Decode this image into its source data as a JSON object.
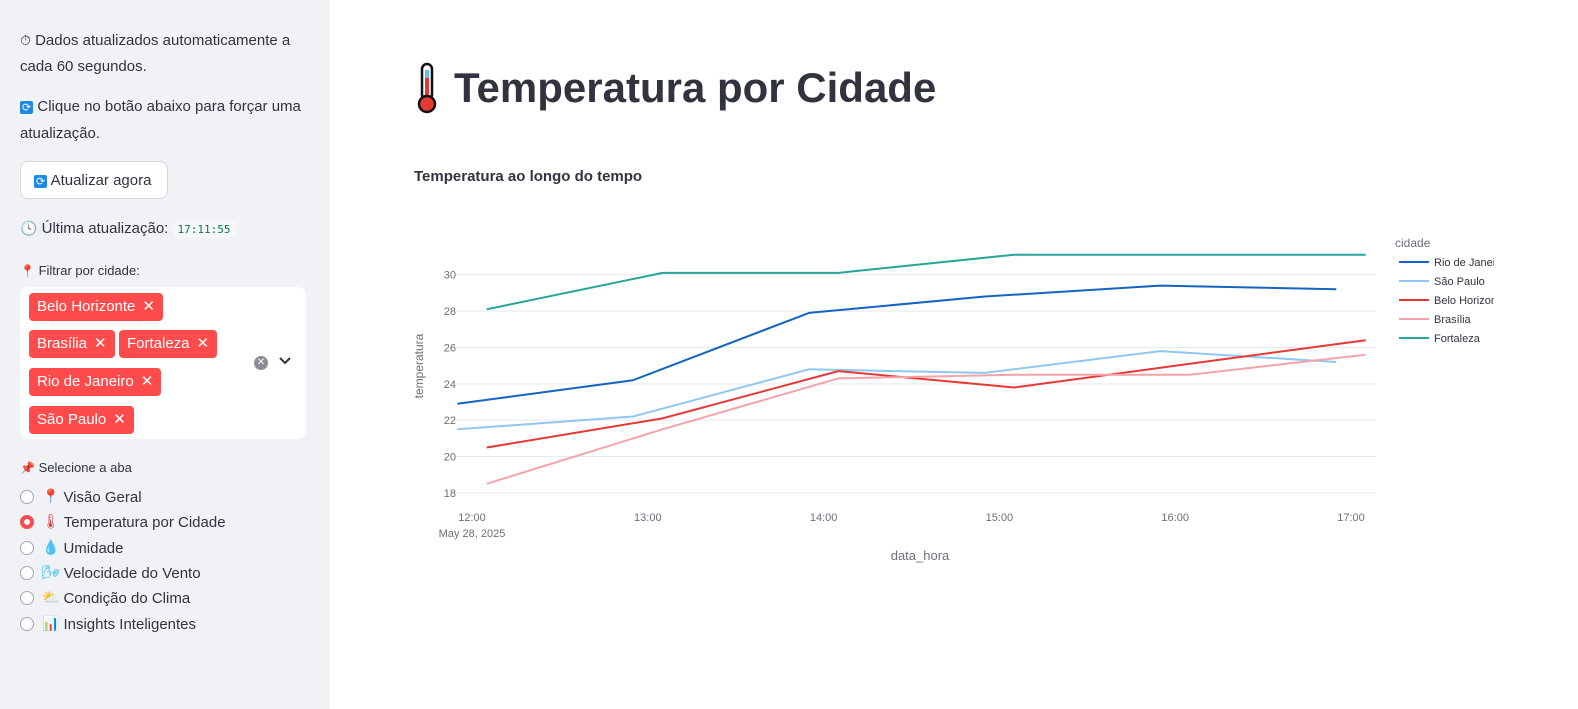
{
  "sidebar": {
    "info1": "Dados atualizados automaticamente a cada 60 segundos.",
    "info1_icon": "stopwatch-icon",
    "info2": "Clique no botão abaixo para forçar uma atualização.",
    "info2_icon": "refresh-icon",
    "refresh_button": "Atualizar agora",
    "last_update_label": "Última atualização:",
    "last_update_time": "17:11:55",
    "filter_label": "Filtrar por cidade:",
    "selected_cities": [
      "Belo Horizonte",
      "Brasília",
      "Fortaleza",
      "Rio de Janeiro",
      "São Paulo"
    ],
    "tab_label": "Selecione a aba",
    "tabs": [
      {
        "label": "Visão Geral",
        "icon": "pin-icon",
        "selected": false
      },
      {
        "label": "Temperatura por Cidade",
        "icon": "thermometer-icon",
        "selected": true
      },
      {
        "label": "Umidade",
        "icon": "droplet-icon",
        "selected": false
      },
      {
        "label": "Velocidade do Vento",
        "icon": "wind-icon",
        "selected": false
      },
      {
        "label": "Condição do Clima",
        "icon": "cloud-sun-icon",
        "selected": false
      },
      {
        "label": "Insights Inteligentes",
        "icon": "bar-chart-icon",
        "selected": false
      }
    ]
  },
  "main": {
    "title": "Temperatura por Cidade",
    "subtitle": "Temperatura ao longo do tempo"
  },
  "chart_data": {
    "type": "line",
    "title": "",
    "xlabel": "data_hora",
    "ylabel": "temperatura",
    "x_ticks": [
      "12:00",
      "13:00",
      "14:00",
      "15:00",
      "16:00",
      "17:00"
    ],
    "x_tick_sub": "May 28, 2025",
    "y_ticks": [
      18,
      20,
      22,
      24,
      26,
      28,
      30
    ],
    "ylim": [
      17.5,
      31.8
    ],
    "legend_title": "cidade",
    "legend_placement": "top-right",
    "grid": true,
    "series": [
      {
        "name": "Rio de Janeiro",
        "color": "#1565c0",
        "points": [
          [
            "11:55",
            22.9
          ],
          [
            "12:55",
            24.2
          ],
          [
            "13:55",
            27.9
          ],
          [
            "14:55",
            28.8
          ],
          [
            "15:55",
            29.4
          ],
          [
            "16:55",
            29.2
          ]
        ]
      },
      {
        "name": "São Paulo",
        "color": "#8ec8f0",
        "points": [
          [
            "11:55",
            21.5
          ],
          [
            "12:55",
            22.2
          ],
          [
            "13:55",
            24.8
          ],
          [
            "14:55",
            24.6
          ],
          [
            "15:55",
            25.8
          ],
          [
            "16:55",
            25.2
          ]
        ]
      },
      {
        "name": "Belo Horizonte",
        "color": "#e53935",
        "points": [
          [
            "12:05",
            20.5
          ],
          [
            "13:05",
            22.1
          ],
          [
            "14:05",
            24.7
          ],
          [
            "15:05",
            23.8
          ],
          [
            "16:05",
            25.1
          ],
          [
            "17:05",
            26.4
          ]
        ]
      },
      {
        "name": "Brasília",
        "color": "#f4a3a8",
        "points": [
          [
            "12:05",
            18.5
          ],
          [
            "13:05",
            21.5
          ],
          [
            "14:05",
            24.3
          ],
          [
            "15:05",
            24.5
          ],
          [
            "16:05",
            24.5
          ],
          [
            "17:05",
            25.6
          ]
        ]
      },
      {
        "name": "Fortaleza",
        "color": "#26a69a",
        "points": [
          [
            "12:05",
            28.1
          ],
          [
            "13:05",
            30.1
          ],
          [
            "14:05",
            30.1
          ],
          [
            "15:05",
            31.1
          ],
          [
            "16:05",
            31.1
          ],
          [
            "17:05",
            31.1
          ]
        ]
      }
    ]
  }
}
